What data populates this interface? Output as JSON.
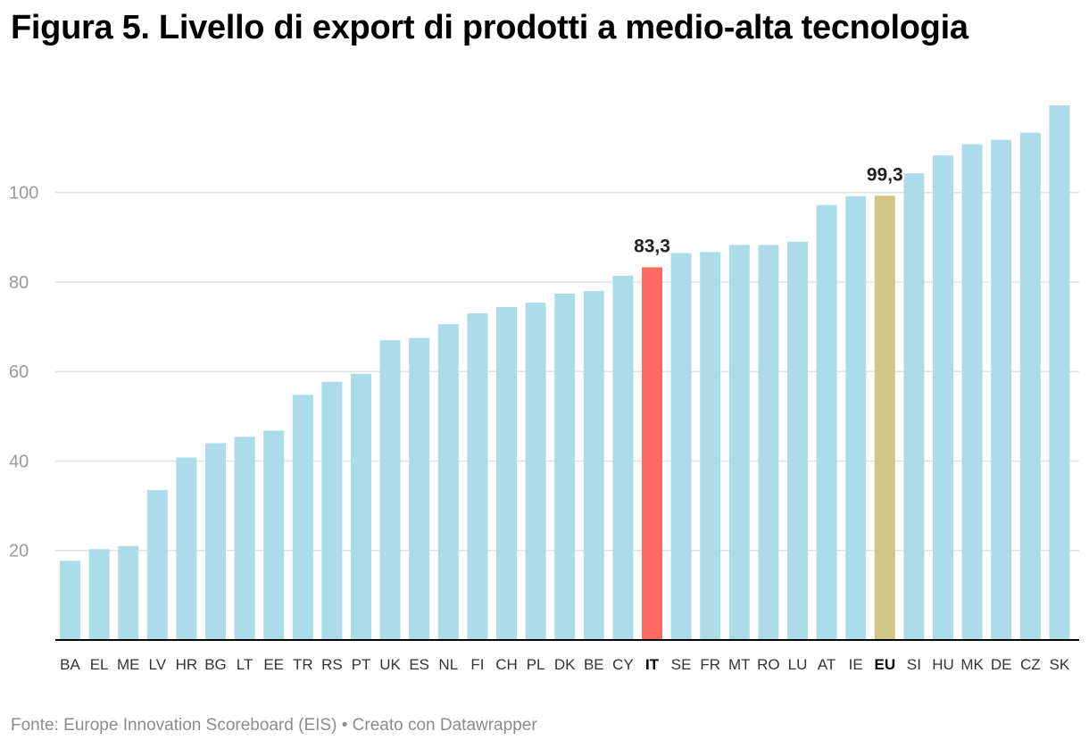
{
  "title": "Figura 5. Livello di export di prodotti a medio-alta tecnologia",
  "footer": {
    "source": "Fonte: Europe Innovation Scoreboard (EIS)",
    "separator": "•",
    "credit": "Creato con Datawrapper"
  },
  "colors": {
    "bar": "#acdcea",
    "highlight_it": "#ff6b61",
    "highlight_eu": "#d1c785",
    "grid": "#e2e2e2",
    "axis": "#000000"
  },
  "chart_data": {
    "type": "bar",
    "title": "Figura 5. Livello di export di prodotti a medio-alta tecnologia",
    "xlabel": "",
    "ylabel": "",
    "ylim": [
      0,
      119.5
    ],
    "yticks": [
      20,
      40,
      60,
      80,
      100
    ],
    "grid": true,
    "categories": [
      "BA",
      "EL",
      "ME",
      "LV",
      "HR",
      "BG",
      "LT",
      "EE",
      "TR",
      "RS",
      "PT",
      "UK",
      "ES",
      "NL",
      "FI",
      "CH",
      "PL",
      "DK",
      "BE",
      "CY",
      "IT",
      "SE",
      "FR",
      "MT",
      "RO",
      "LU",
      "AT",
      "IE",
      "EU",
      "SI",
      "HU",
      "MK",
      "DE",
      "CZ",
      "SK"
    ],
    "values": [
      17.7,
      20.3,
      21,
      33.5,
      40.8,
      44,
      45.4,
      46.8,
      54.8,
      57.7,
      59.5,
      67,
      67.5,
      70.6,
      73,
      74.4,
      75.4,
      77.4,
      78,
      81.4,
      83.3,
      86.5,
      86.7,
      88.3,
      88.3,
      89,
      97.2,
      99.2,
      99.3,
      104.3,
      108.3,
      110.8,
      111.8,
      113.4,
      119.5
    ],
    "highlights": [
      "IT",
      "EU"
    ],
    "annotations": [
      {
        "category": "IT",
        "text": "83,3"
      },
      {
        "category": "EU",
        "text": "99,3"
      }
    ]
  }
}
